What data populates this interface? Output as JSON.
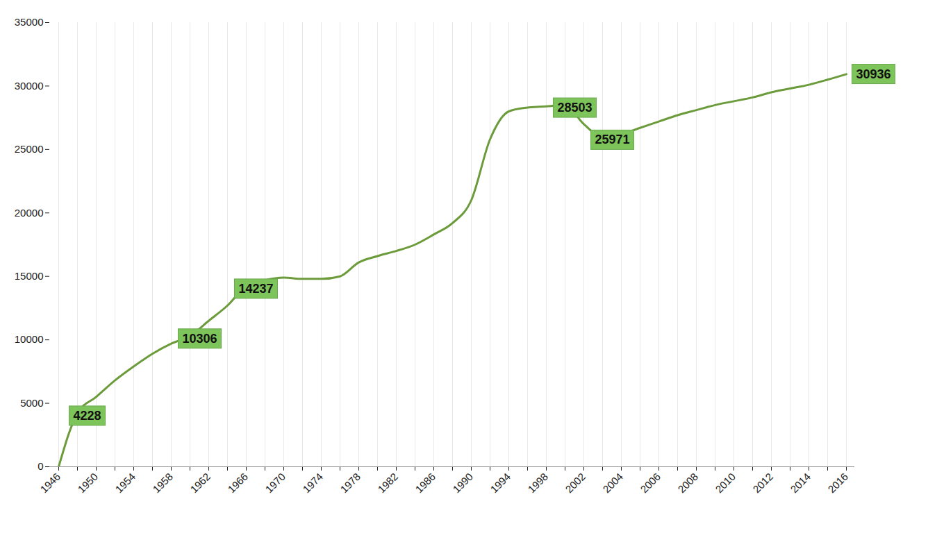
{
  "chart_data": {
    "type": "line",
    "categories": [
      "1946",
      null,
      "1950",
      null,
      "1954",
      null,
      "1958",
      null,
      "1962",
      null,
      "1966",
      null,
      "1970",
      null,
      "1974",
      null,
      "1978",
      null,
      "1982",
      null,
      "1986",
      null,
      "1990",
      null,
      "1994",
      null,
      "1998",
      null,
      "2002",
      null,
      "2004",
      null,
      "2006",
      null,
      "2008",
      null,
      "2010",
      null,
      "2012",
      null,
      "2014",
      null,
      "2016"
    ],
    "values": [
      0,
      4228,
      5500,
      6800,
      7900,
      8900,
      9700,
      10306,
      11500,
      12700,
      14237,
      14700,
      14900,
      14800,
      14800,
      15000,
      16100,
      16600,
      17000,
      17500,
      18300,
      19200,
      21000,
      25800,
      28000,
      28300,
      28400,
      28503,
      27000,
      25971,
      26200,
      26700,
      27200,
      27700,
      28100,
      28500,
      28800,
      29100,
      29500,
      29800,
      30100,
      30500,
      30936
    ],
    "value_labels": [
      null,
      "4228",
      null,
      null,
      null,
      null,
      null,
      "10306",
      null,
      null,
      "14237",
      null,
      null,
      null,
      null,
      null,
      null,
      null,
      null,
      null,
      null,
      null,
      null,
      null,
      null,
      null,
      null,
      "28503",
      null,
      "25971",
      null,
      null,
      null,
      null,
      null,
      null,
      null,
      null,
      null,
      null,
      null,
      null,
      "30936"
    ],
    "color": "#6b9b3a",
    "ylim": [
      0,
      35000
    ],
    "yticks": [
      0,
      5000,
      10000,
      15000,
      20000,
      25000,
      30000,
      35000
    ],
    "grid": true,
    "data_labels": true
  }
}
